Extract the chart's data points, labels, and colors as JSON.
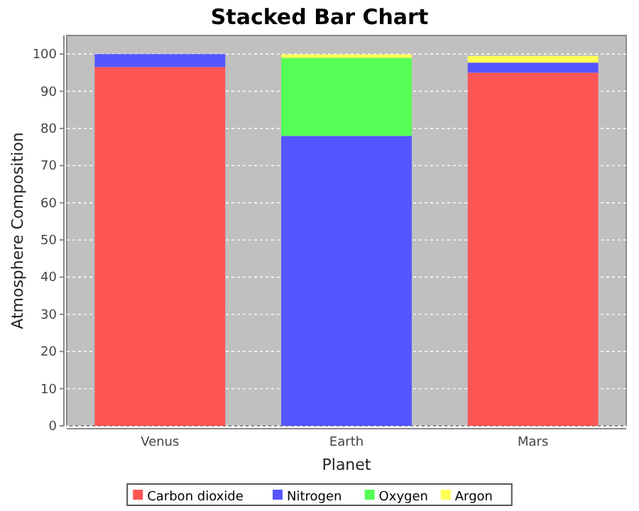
{
  "chart_data": {
    "type": "bar",
    "title": "Stacked Bar Chart",
    "xlabel": "Planet",
    "ylabel": "Atmosphere Composition",
    "categories": [
      "Venus",
      "Earth",
      "Mars"
    ],
    "stacked": true,
    "series": [
      {
        "name": "Carbon dioxide",
        "color": "#ff5555",
        "values": [
          96.5,
          0,
          95
        ]
      },
      {
        "name": "Nitrogen",
        "color": "#5555ff",
        "values": [
          3.5,
          78,
          2.7
        ]
      },
      {
        "name": "Oxygen",
        "color": "#55ff55",
        "values": [
          0,
          21,
          0
        ]
      },
      {
        "name": "Argon",
        "color": "#ffff55",
        "values": [
          0,
          0.9,
          1.8
        ]
      }
    ],
    "ylim": [
      0,
      105
    ],
    "yticks": [
      0,
      10,
      20,
      30,
      40,
      50,
      60,
      70,
      80,
      90,
      100
    ],
    "grid": "y",
    "legend": "bottom"
  }
}
